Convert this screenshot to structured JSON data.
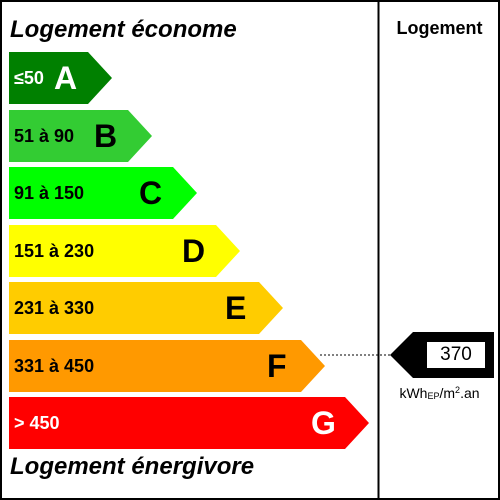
{
  "title_top": "Logement économe",
  "title_bottom": "Logement énergivore",
  "column_header": "Logement",
  "bands": [
    {
      "range": "≤50",
      "letter": "A",
      "color": "#008000"
    },
    {
      "range": "51 à 90",
      "letter": "B",
      "color": "#33cc33"
    },
    {
      "range": "91 à 150",
      "letter": "C",
      "color": "#00ff00"
    },
    {
      "range": "151 à 230",
      "letter": "D",
      "color": "#ffff00"
    },
    {
      "range": "231 à 330",
      "letter": "E",
      "color": "#ffcc00"
    },
    {
      "range": "331 à 450",
      "letter": "F",
      "color": "#ff9900"
    },
    {
      "range": "> 450",
      "letter": "G",
      "color": "#ff0000"
    }
  ],
  "indicator": {
    "value": "370",
    "class": "F"
  },
  "unit": {
    "base": "kWh",
    "subscript": "EP",
    "middle": "/m",
    "superscript": "2",
    "end": ".an"
  }
}
